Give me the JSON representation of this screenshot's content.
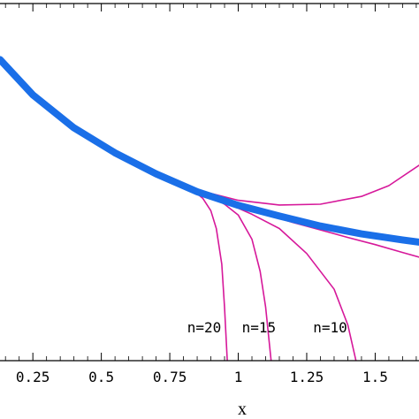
{
  "chart_data": {
    "type": "line",
    "title": "",
    "xlabel": "x",
    "ylabel": "",
    "xlim": [
      0.13,
      1.66
    ],
    "ylim": [
      0.0,
      1.0
    ],
    "grid": false,
    "x_ticks": [
      0.25,
      0.5,
      0.75,
      1,
      1.25,
      1.5
    ],
    "x_tick_labels": [
      "0.25",
      "0.5",
      "0.75",
      "1",
      "1.25",
      "1.5"
    ],
    "colors": {
      "exact": "#1a6fe8",
      "approx": "#d6189a",
      "frame": "#000000"
    },
    "series": [
      {
        "role": "exact",
        "x": [
          0.13,
          0.25,
          0.4,
          0.55,
          0.7,
          0.85,
          1.0,
          1.15,
          1.3,
          1.45,
          1.6,
          1.66
        ],
        "y": [
          0.843,
          0.744,
          0.652,
          0.582,
          0.523,
          0.473,
          0.435,
          0.405,
          0.377,
          0.355,
          0.338,
          0.332
        ]
      },
      {
        "role": "approx",
        "x": [
          0.72,
          0.85,
          1.0,
          1.15,
          1.3,
          1.45,
          1.55,
          1.66
        ],
        "y": [
          0.516,
          0.478,
          0.449,
          0.436,
          0.438,
          0.46,
          0.49,
          0.547
        ]
      },
      {
        "role": "approx",
        "x": [
          0.75,
          0.85,
          1.0,
          1.1,
          1.2,
          1.3,
          1.4,
          1.5,
          1.6,
          1.66
        ],
        "y": [
          0.508,
          0.477,
          0.435,
          0.41,
          0.387,
          0.366,
          0.345,
          0.325,
          0.303,
          0.29
        ]
      },
      {
        "role": "approx",
        "x": [
          0.78,
          0.85,
          0.95,
          1.05,
          1.15,
          1.25,
          1.35,
          1.4,
          1.43
        ],
        "y": [
          0.5,
          0.478,
          0.444,
          0.41,
          0.37,
          0.3,
          0.2,
          0.1,
          0.0
        ]
      },
      {
        "role": "approx",
        "x": [
          0.8,
          0.85,
          0.9,
          0.95,
          1.0,
          1.05,
          1.08,
          1.1,
          1.12
        ],
        "y": [
          0.494,
          0.478,
          0.46,
          0.438,
          0.408,
          0.34,
          0.25,
          0.15,
          0.0
        ]
      },
      {
        "role": "approx",
        "x": [
          0.79,
          0.83,
          0.87,
          0.9,
          0.92,
          0.94,
          0.95,
          0.96
        ],
        "y": [
          0.497,
          0.48,
          0.455,
          0.42,
          0.37,
          0.27,
          0.15,
          0.0
        ]
      }
    ],
    "annotations": [
      {
        "text": "n=20",
        "x": 0.97
      },
      {
        "text": "n=15",
        "x": 1.17
      },
      {
        "text": "n=10",
        "x": 1.43
      }
    ]
  }
}
